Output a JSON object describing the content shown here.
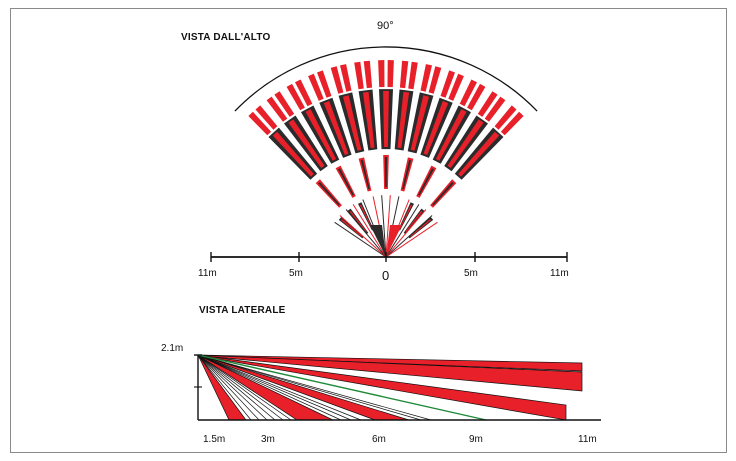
{
  "top_view": {
    "title": "VISTA DALL'ALTO",
    "angle_label": "90°",
    "scale_labels": {
      "left_far": "11m",
      "left_mid": "5m",
      "center": "0",
      "right_mid": "5m",
      "right_far": "11m"
    }
  },
  "side_view": {
    "title": "VISTA LATERALE",
    "height_label": "2.1m",
    "distance_labels": [
      "1.5m",
      "3m",
      "6m",
      "9m",
      "11m"
    ]
  },
  "colors": {
    "beam_red": "#e8202a",
    "beam_dark": "#2b2b2b",
    "beam_green": "#1f8a3a",
    "line": "#111111",
    "frame": "#8a8a8a"
  }
}
